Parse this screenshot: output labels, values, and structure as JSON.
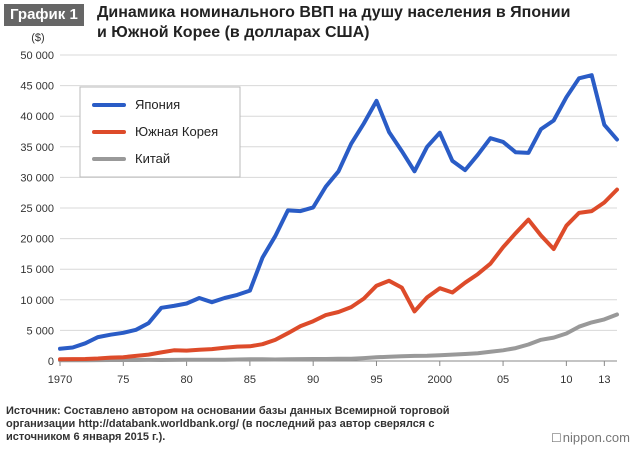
{
  "header": {
    "badge": "График 1",
    "title_line1": "Динамика номинального ВВП на душу населения в Японии",
    "title_line2": "и Южной Корее (в долларах США)"
  },
  "chart_data": {
    "type": "line",
    "title": "Динамика номинального ВВП на душу населения в Японии и Южной Корее (в долларах США)",
    "ylabel": "($)",
    "xlabel": "",
    "ylim": [
      0,
      50000
    ],
    "xlim": [
      1970,
      2014
    ],
    "yticks": [
      0,
      5000,
      10000,
      15000,
      20000,
      25000,
      30000,
      35000,
      40000,
      45000,
      50000
    ],
    "ytick_labels": [
      "0",
      "5 000",
      "10 000",
      "15 000",
      "20 000",
      "25 000",
      "30 000",
      "35 000",
      "40 000",
      "45 000",
      "50 000"
    ],
    "xticks": [
      1970,
      1975,
      1980,
      1985,
      1990,
      1995,
      2000,
      2005,
      2010,
      2013
    ],
    "xtick_labels": [
      "1970",
      "75",
      "80",
      "85",
      "90",
      "95",
      "2000",
      "05",
      "10",
      "13"
    ],
    "grid": true,
    "legend_position": "top-left",
    "x": [
      1970,
      1971,
      1972,
      1973,
      1974,
      1975,
      1976,
      1977,
      1978,
      1979,
      1980,
      1981,
      1982,
      1983,
      1984,
      1985,
      1986,
      1987,
      1988,
      1989,
      1990,
      1991,
      1992,
      1993,
      1994,
      1995,
      1996,
      1997,
      1998,
      1999,
      2000,
      2001,
      2002,
      2003,
      2004,
      2005,
      2006,
      2007,
      2008,
      2009,
      2010,
      2011,
      2012,
      2013,
      2014
    ],
    "series": [
      {
        "name": "Япония",
        "color": "#2a5cc6",
        "values": [
          2000,
          2200,
          2900,
          3900,
          4300,
          4600,
          5100,
          6200,
          8700,
          9000,
          9400,
          10300,
          9600,
          10300,
          10800,
          11500,
          16900,
          20400,
          24600,
          24500,
          25100,
          28500,
          31000,
          35500,
          38800,
          42500,
          37400,
          34300,
          31000,
          35000,
          37300,
          32700,
          31200,
          33700,
          36400,
          35800,
          34100,
          34000,
          37900,
          39300,
          43100,
          46200,
          46700,
          38600,
          36200
        ]
      },
      {
        "name": "Южная Корея",
        "color": "#dd4b2a",
        "values": [
          280,
          310,
          330,
          410,
          550,
          620,
          830,
          1050,
          1400,
          1750,
          1700,
          1850,
          1950,
          2150,
          2350,
          2400,
          2750,
          3450,
          4550,
          5700,
          6500,
          7500,
          8000,
          8800,
          10200,
          12300,
          13100,
          12000,
          8100,
          10400,
          11900,
          11200,
          12800,
          14200,
          15900,
          18600,
          20900,
          23100,
          20500,
          18300,
          22100,
          24200,
          24500,
          25900,
          28000
        ]
      },
      {
        "name": "Китай",
        "color": "#999999",
        "values": [
          110,
          120,
          130,
          150,
          160,
          170,
          160,
          180,
          160,
          180,
          190,
          200,
          200,
          220,
          250,
          290,
          280,
          250,
          280,
          310,
          320,
          330,
          360,
          380,
          470,
          610,
          710,
          780,
          830,
          870,
          950,
          1050,
          1140,
          1280,
          1510,
          1750,
          2100,
          2700,
          3470,
          3830,
          4500,
          5600,
          6300,
          6800,
          7600
        ]
      }
    ]
  },
  "footer": {
    "source": "Источник: Составлено автором на основании базы данных Всемирной торговой организации http://databank.worldbank.org/ (в последний раз автор сверялся с источником 6 января 2015 г.).",
    "brand": "nippon.com"
  },
  "brand_icon": "nippon-logo-icon"
}
